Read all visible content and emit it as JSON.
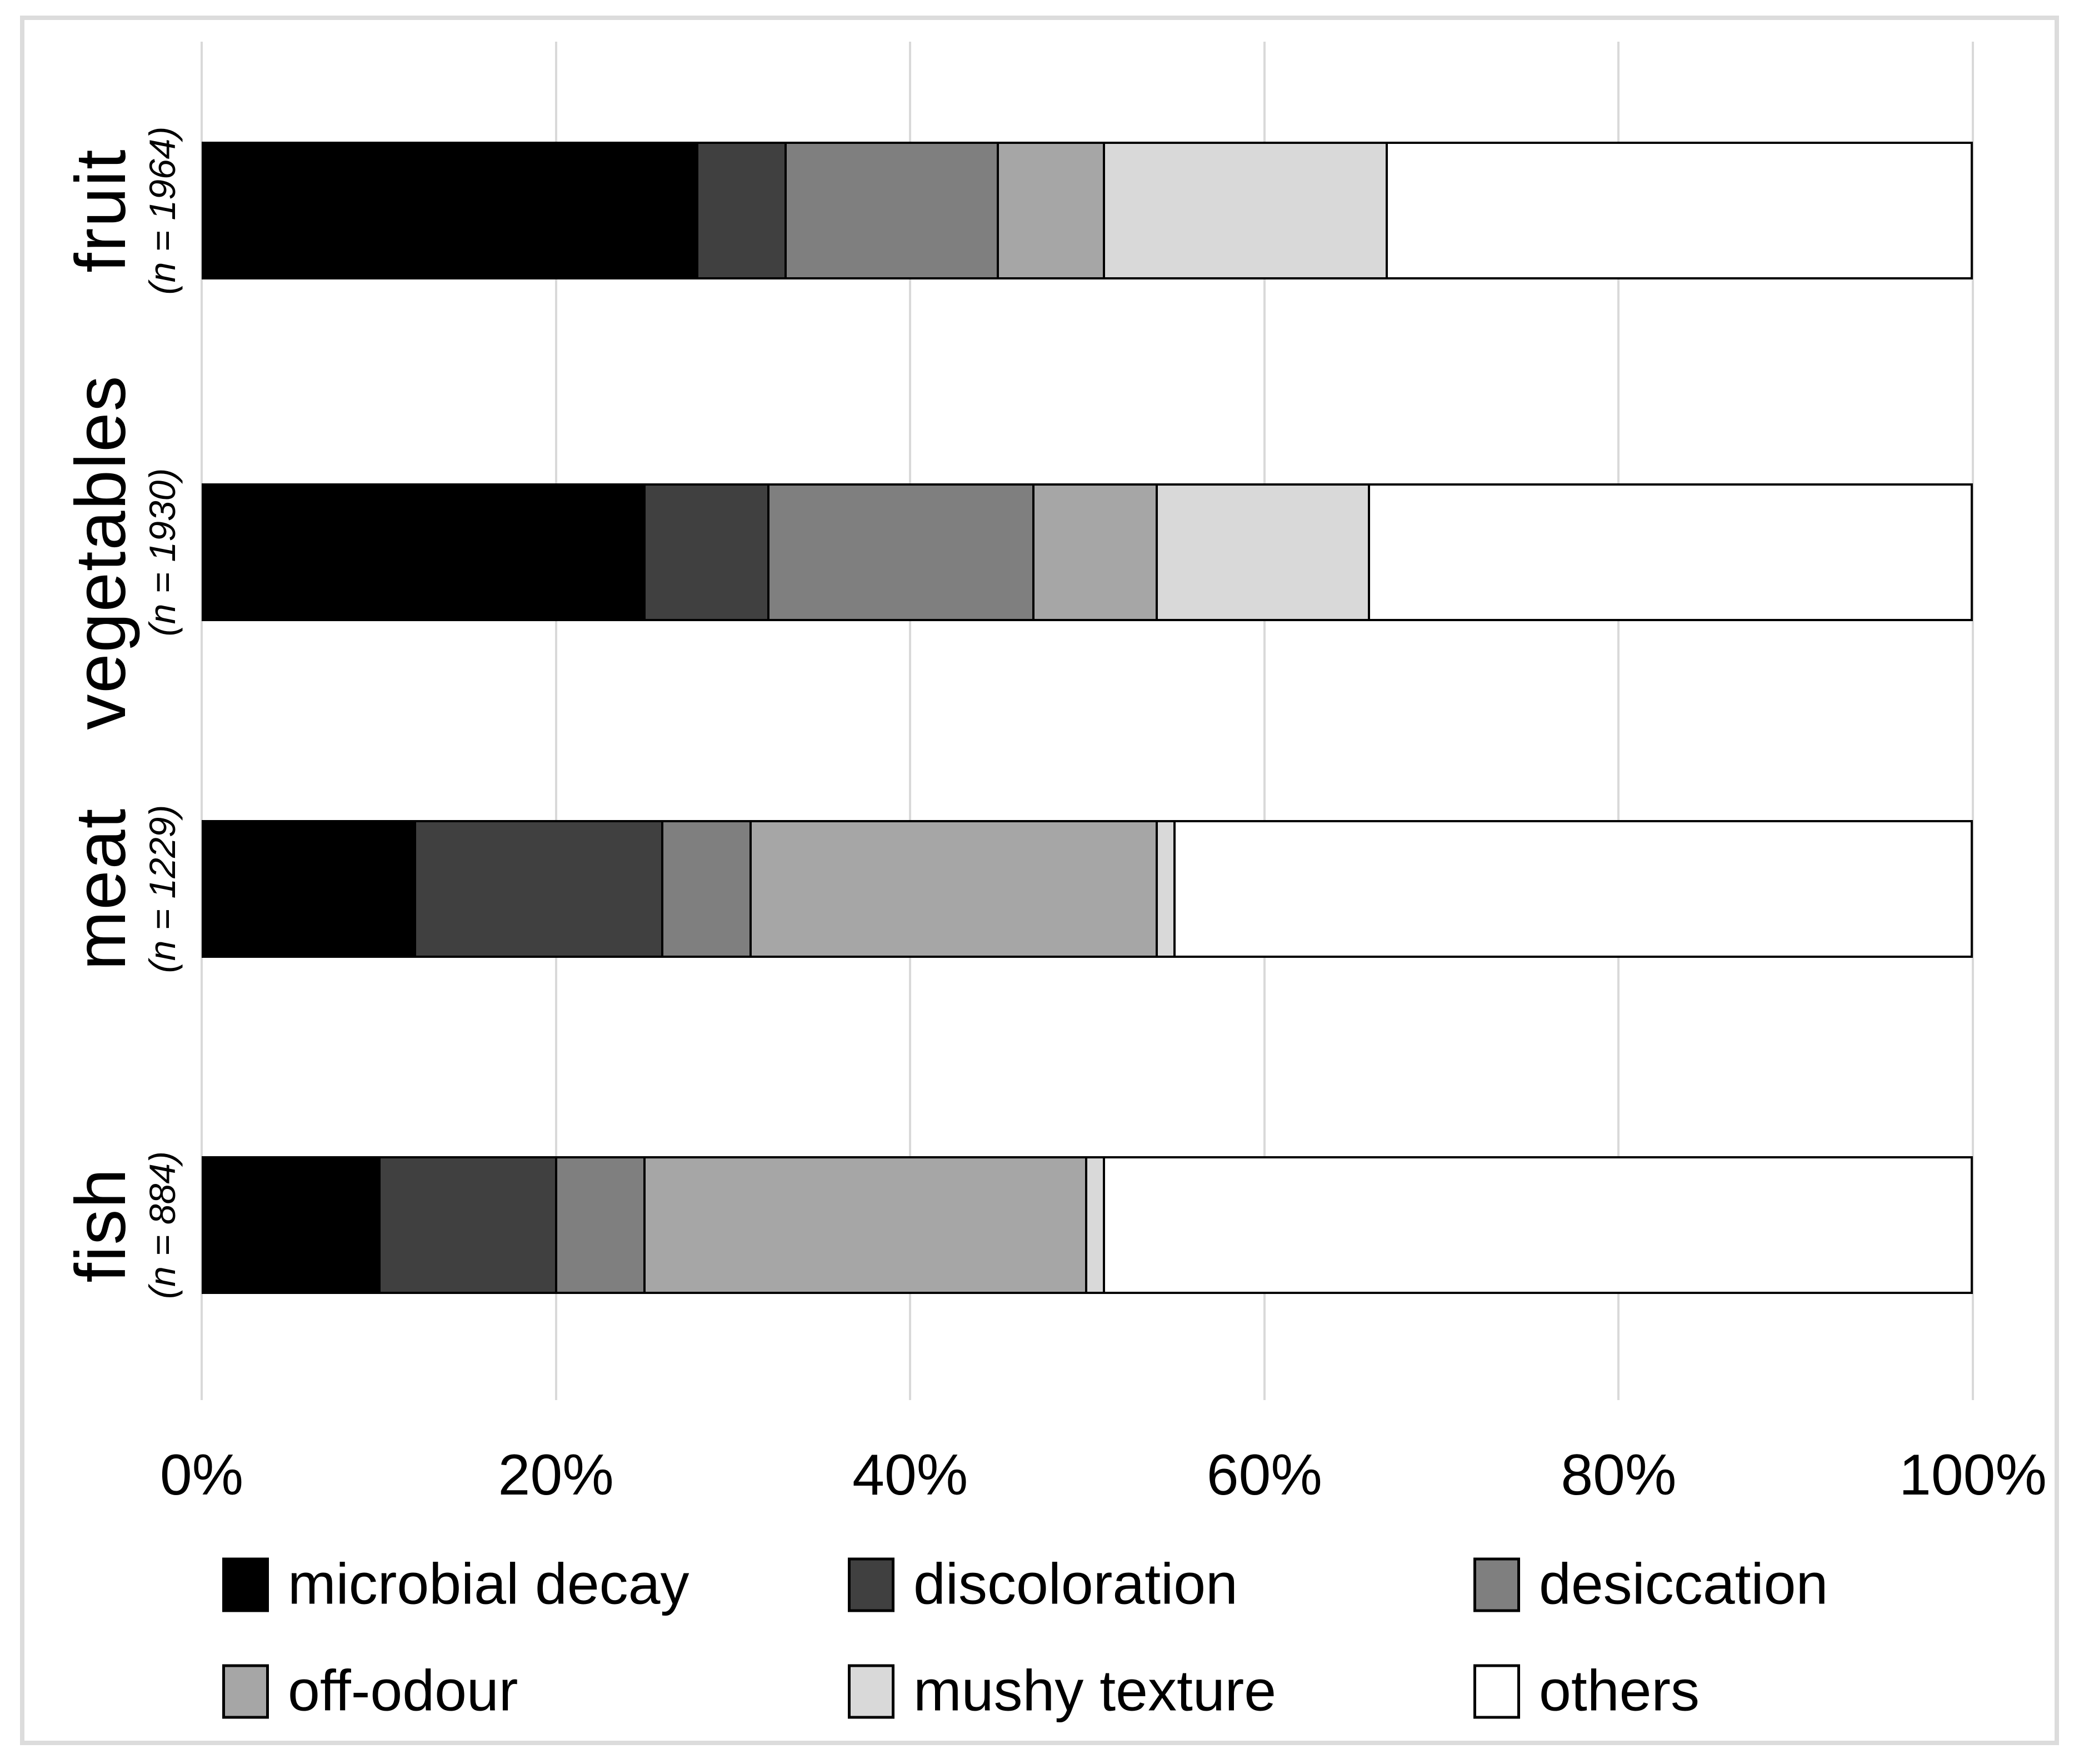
{
  "chart_data": {
    "type": "bar",
    "orientation": "horizontal",
    "stacked": true,
    "unit": "%",
    "xlim": [
      0,
      100
    ],
    "grid": true,
    "legend_position": "bottom",
    "x_ticks": [
      "0%",
      "20%",
      "40%",
      "60%",
      "80%",
      "100%"
    ],
    "categories": [
      {
        "label": "fruit",
        "n": "(n = 1964)"
      },
      {
        "label": "vegetables",
        "n": "(n = 1930)"
      },
      {
        "label": "meat",
        "n": "(n = 1229)"
      },
      {
        "label": "fish",
        "n": "(n = 884)"
      }
    ],
    "series": [
      {
        "name": "microbial decay",
        "color": "#000000",
        "values": [
          28,
          25,
          12,
          10
        ]
      },
      {
        "name": "discoloration",
        "color": "#404040",
        "values": [
          5,
          7,
          14,
          10
        ]
      },
      {
        "name": "desiccation",
        "color": "#7f7f7f",
        "values": [
          12,
          15,
          5,
          5
        ]
      },
      {
        "name": "off-odour",
        "color": "#a6a6a6",
        "values": [
          6,
          7,
          23,
          25
        ]
      },
      {
        "name": "mushy texture",
        "color": "#d9d9d9",
        "values": [
          16,
          12,
          1,
          1
        ]
      },
      {
        "name": "others",
        "color": "#ffffff",
        "values": [
          33,
          34,
          45,
          49
        ]
      }
    ],
    "colors": {
      "segment_border": "#000000",
      "gridline": "#d9d9d9",
      "frame": "#dcdcdc",
      "background": "#ffffff"
    }
  }
}
